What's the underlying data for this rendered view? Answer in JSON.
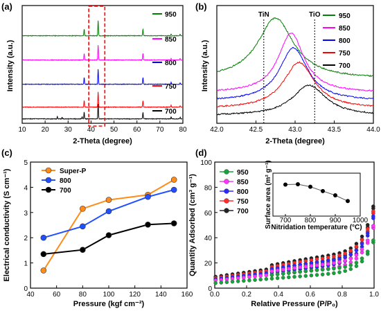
{
  "chart_data": [
    {
      "panel": "(a)",
      "type": "line",
      "xlabel": "2-Theta (degree)",
      "ylabel": "Intensity (a.u.)",
      "xlim": [
        10,
        80
      ],
      "xticks": [
        10,
        20,
        30,
        40,
        50,
        60,
        70,
        80
      ],
      "peaks": [
        {
          "x": 37.0,
          "h": 0.45
        },
        {
          "x": 43.1,
          "h": 1.0
        },
        {
          "x": 62.6,
          "h": 0.45
        },
        {
          "x": 74.9,
          "h": 0.12
        },
        {
          "x": 78.8,
          "h": 0.1
        }
      ],
      "series": [
        {
          "name": "950",
          "color": "#008000"
        },
        {
          "name": "850",
          "color": "#ff00ff"
        },
        {
          "name": "800",
          "color": "#0000ff"
        },
        {
          "name": "750",
          "color": "#ff0000"
        },
        {
          "name": "700",
          "color": "#000000"
        }
      ],
      "highlight_range": [
        39,
        46
      ],
      "highlight_color": "#ff0000"
    },
    {
      "panel": "(b)",
      "type": "line",
      "xlabel": "2-Theta (degree)",
      "ylabel": "Intensity (a.u.)",
      "xlim": [
        42.0,
        44.0
      ],
      "xticks": [
        "42.0",
        "42.5",
        "43.0",
        "43.5",
        "44.0"
      ],
      "ref_lines": [
        {
          "label": "TiN",
          "x": 42.6
        },
        {
          "label": "TiO",
          "x": 43.25
        }
      ],
      "series": [
        {
          "name": "950",
          "color": "#008000",
          "peak": 42.75,
          "width": 0.28
        },
        {
          "name": "850",
          "color": "#ff00ff",
          "peak": 42.95,
          "width": 0.2
        },
        {
          "name": "800",
          "color": "#0000ff",
          "peak": 42.98,
          "width": 0.22
        },
        {
          "name": "750",
          "color": "#ff0000",
          "peak": 43.05,
          "width": 0.24
        },
        {
          "name": "700",
          "color": "#000000",
          "peak": 43.18,
          "width": 0.26
        }
      ]
    },
    {
      "panel": "(c)",
      "type": "line",
      "xlabel": "Pressure (kgf cm⁻²)",
      "ylabel": "Electrical conductivity (S cm⁻¹)",
      "xlim": [
        40,
        160
      ],
      "ylim": [
        0,
        5
      ],
      "xticks": [
        40,
        60,
        80,
        100,
        120,
        140,
        160
      ],
      "yticks": [
        0,
        1,
        2,
        3,
        4,
        5
      ],
      "x": [
        50,
        80,
        100,
        130,
        150
      ],
      "series": [
        {
          "name": "Super-P",
          "color": "#ff8c1a",
          "values": [
            0.7,
            3.15,
            3.5,
            3.7,
            4.3
          ]
        },
        {
          "name": "800",
          "color": "#1f4fff",
          "values": [
            2.0,
            2.45,
            3.05,
            3.62,
            3.9
          ]
        },
        {
          "name": "700",
          "color": "#000000",
          "values": [
            1.35,
            1.52,
            2.1,
            2.52,
            2.57
          ]
        }
      ],
      "legend": "top-left"
    },
    {
      "panel": "(d)",
      "type": "scatter",
      "xlabel": "Relative Pressure (P/P₀)",
      "ylabel": "Quantity Adsorbed (cm³ g⁻¹)",
      "xlim": [
        0.0,
        1.0
      ],
      "ylim": [
        0,
        100
      ],
      "xticks": [
        "0.0",
        "0.2",
        "0.4",
        "0.6",
        "0.8",
        "1.0"
      ],
      "yticks": [
        0,
        20,
        40,
        60,
        80,
        100
      ],
      "series": [
        {
          "name": "950",
          "color": "#17a33b",
          "start": 4,
          "slope": 10,
          "end": 38
        },
        {
          "name": "850",
          "color": "#ff33ff",
          "start": 6,
          "slope": 13,
          "end": 50
        },
        {
          "name": "800",
          "color": "#2a2aff",
          "start": 7,
          "slope": 15,
          "end": 58
        },
        {
          "name": "750",
          "color": "#ff2a2a",
          "start": 8,
          "slope": 17,
          "end": 62
        },
        {
          "name": "700",
          "color": "#222222",
          "start": 9,
          "slope": 18,
          "end": 66
        }
      ],
      "inset": {
        "type": "line",
        "xlabel": "Nitridation temperature (°C)",
        "ylabel": "Surface area (m² g⁻¹)",
        "xlim": [
          650,
          1000
        ],
        "ylim": [
          0,
          60
        ],
        "xticks": [
          700,
          800,
          900,
          1000
        ],
        "x": [
          700,
          750,
          800,
          850,
          900,
          950
        ],
        "values": [
          44,
          44.5,
          41,
          35,
          29,
          21
        ]
      }
    }
  ],
  "panel_labels": [
    "(a)",
    "(b)",
    "(c)",
    "(d)"
  ]
}
